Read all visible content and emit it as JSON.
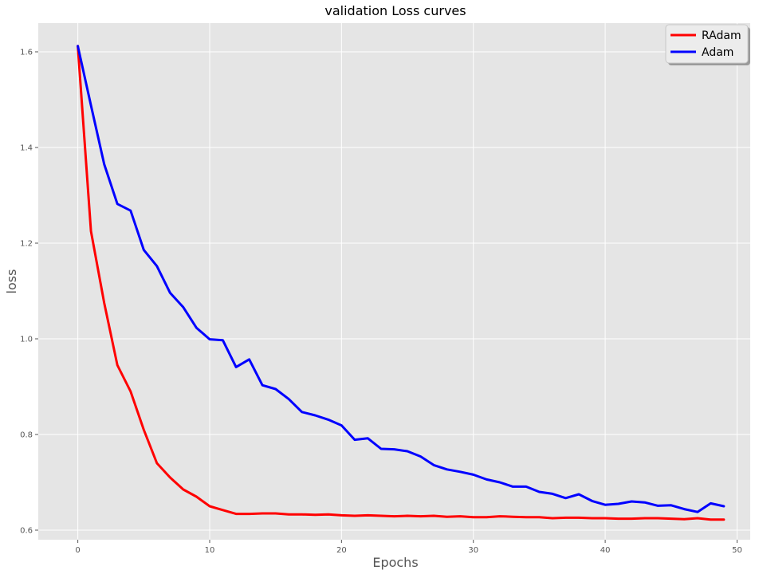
{
  "chart_data": {
    "type": "line",
    "title": "validation Loss curves",
    "xlabel": "Epochs",
    "ylabel": "loss",
    "xlim": [
      -3,
      51
    ],
    "ylim": [
      0.58,
      1.66
    ],
    "xticks": [
      0,
      10,
      20,
      30,
      40,
      50
    ],
    "yticks": [
      0.6,
      0.8,
      1.0,
      1.2,
      1.4,
      1.6
    ],
    "xtick_labels": [
      "0",
      "10",
      "20",
      "30",
      "40",
      "50"
    ],
    "ytick_labels": [
      "0.6",
      "0.8",
      "1.0",
      "1.2",
      "1.4",
      "1.6"
    ],
    "grid": true,
    "legend_position": "top-right",
    "x": [
      0,
      1,
      2,
      3,
      4,
      5,
      6,
      7,
      8,
      9,
      10,
      11,
      12,
      13,
      14,
      15,
      16,
      17,
      18,
      19,
      20,
      21,
      22,
      23,
      24,
      25,
      26,
      27,
      28,
      29,
      30,
      31,
      32,
      33,
      34,
      35,
      36,
      37,
      38,
      39,
      40,
      41,
      42,
      43,
      44,
      45,
      46,
      47,
      48,
      49
    ],
    "series": [
      {
        "name": "RAdam",
        "color": "#ff0000",
        "values": [
          1.612,
          1.225,
          1.075,
          0.945,
          0.89,
          0.81,
          0.74,
          0.71,
          0.685,
          0.67,
          0.65,
          0.642,
          0.634,
          0.634,
          0.635,
          0.635,
          0.633,
          0.633,
          0.632,
          0.633,
          0.631,
          0.63,
          0.631,
          0.63,
          0.629,
          0.63,
          0.629,
          0.63,
          0.628,
          0.629,
          0.627,
          0.627,
          0.629,
          0.628,
          0.627,
          0.627,
          0.625,
          0.626,
          0.626,
          0.625,
          0.625,
          0.624,
          0.624,
          0.625,
          0.625,
          0.624,
          0.623,
          0.625,
          0.622,
          0.622
        ]
      },
      {
        "name": "Adam",
        "color": "#0000ff",
        "values": [
          1.612,
          1.488,
          1.365,
          1.282,
          1.268,
          1.186,
          1.152,
          1.096,
          1.066,
          1.023,
          0.999,
          0.997,
          0.941,
          0.957,
          0.903,
          0.895,
          0.874,
          0.847,
          0.84,
          0.831,
          0.819,
          0.789,
          0.792,
          0.77,
          0.769,
          0.765,
          0.754,
          0.736,
          0.727,
          0.722,
          0.716,
          0.706,
          0.7,
          0.691,
          0.691,
          0.68,
          0.676,
          0.667,
          0.675,
          0.661,
          0.653,
          0.655,
          0.66,
          0.658,
          0.651,
          0.652,
          0.644,
          0.638,
          0.656,
          0.65
        ]
      }
    ]
  }
}
